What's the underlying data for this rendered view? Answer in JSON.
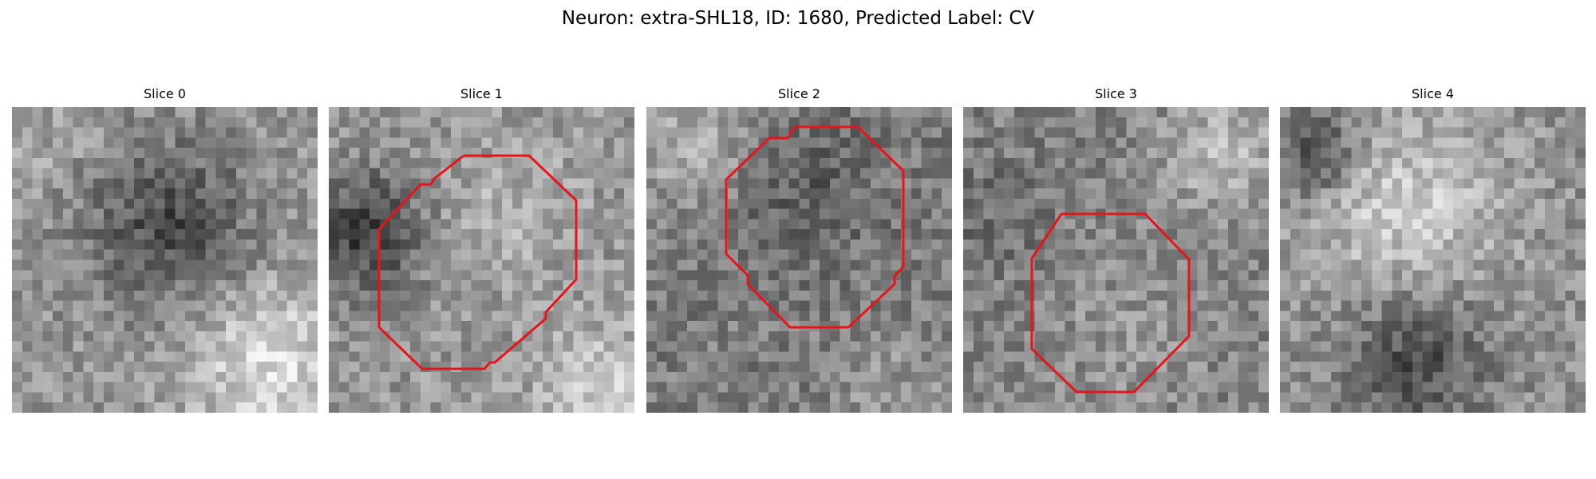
{
  "figure": {
    "title": "Neuron: extra-SHL18, ID: 1680, Predicted Label: CV"
  },
  "panels": [
    {
      "title": "Slice 0"
    },
    {
      "title": "Slice 1"
    },
    {
      "title": "Slice 2"
    },
    {
      "title": "Slice 3"
    },
    {
      "title": "Slice 4"
    }
  ],
  "style": {
    "contour_color": "#e8141a",
    "colormap": "gray"
  }
}
